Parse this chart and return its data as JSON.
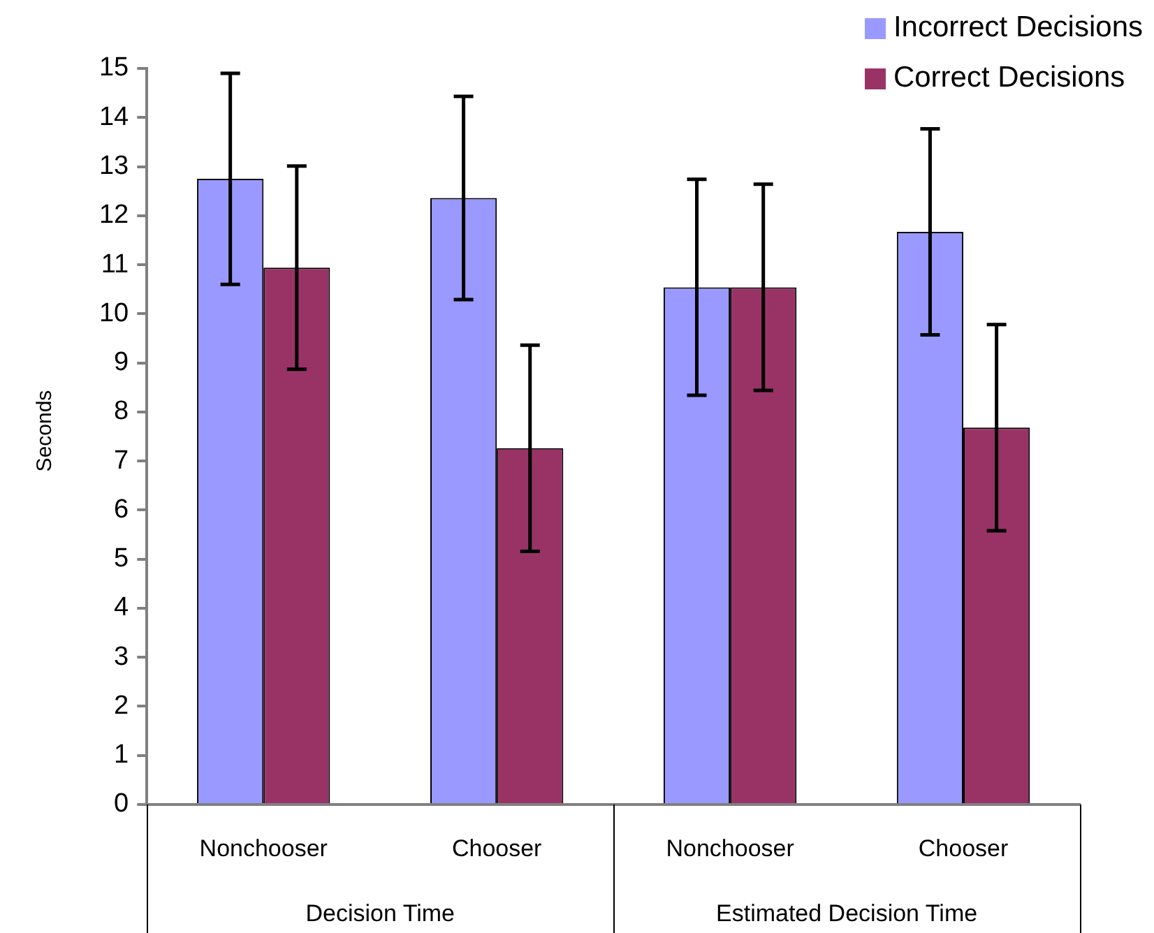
{
  "chart_data": {
    "type": "bar",
    "ylabel": "Seconds",
    "categories": [
      "Nonchooser",
      "Chooser",
      "Nonchooser",
      "Chooser"
    ],
    "series": [
      {
        "name": "Incorrect Decisions",
        "color": "#9999ff",
        "values": [
          12.75,
          12.36,
          10.54,
          11.67
        ],
        "errors": [
          2.15,
          2.07,
          2.2,
          2.1
        ]
      },
      {
        "name": "Correct Decisions",
        "color": "#993366",
        "values": [
          10.94,
          7.26,
          10.54,
          7.68
        ],
        "errors": [
          2.07,
          2.1,
          2.1,
          2.1
        ]
      }
    ],
    "annotations": [
      "Decision Time",
      "Estimated Decision Time"
    ],
    "ylim": [
      0,
      15
    ],
    "yticks": [
      0,
      1,
      2,
      3,
      4,
      5,
      6,
      7,
      8,
      9,
      10,
      11,
      12,
      13,
      14,
      15
    ],
    "grid": false,
    "legend": "top right"
  }
}
